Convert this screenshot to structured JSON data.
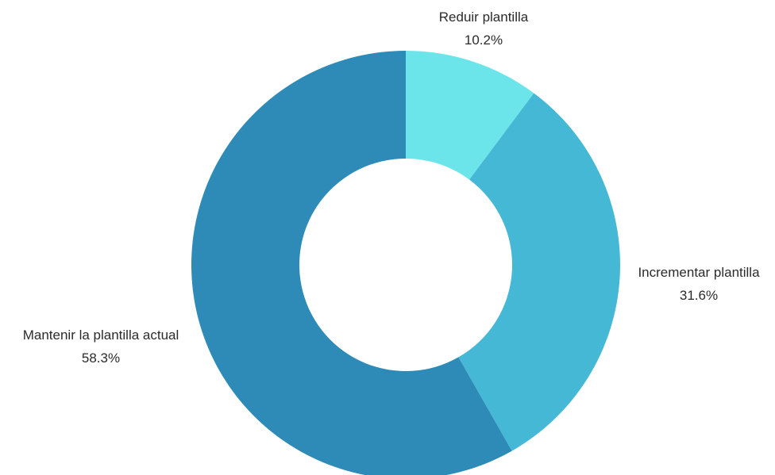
{
  "chart_data": {
    "type": "pie",
    "donut": true,
    "title": "",
    "slices": [
      {
        "label": "Reduir plantilla",
        "value": 10.2,
        "value_label": "10.2%",
        "color": "#6be5ea"
      },
      {
        "label": "Incrementar plantilla",
        "value": 31.6,
        "value_label": "31.6%",
        "color": "#45b8d6"
      },
      {
        "label": "Mantenir la plantilla actual",
        "value": 58.3,
        "value_label": "58.3%",
        "color": "#2e8bb8"
      }
    ],
    "start": "top",
    "direction": "clockwise",
    "legend": "none"
  }
}
